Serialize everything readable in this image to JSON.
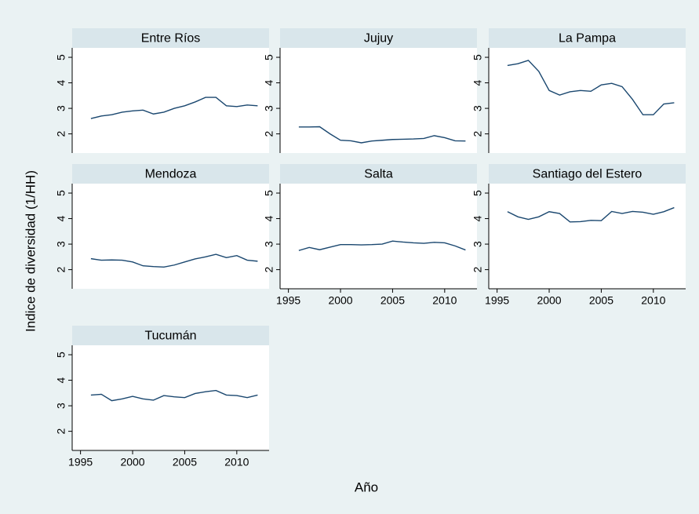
{
  "axis_titles": {
    "y": "Indice de diversidad (1/HH)",
    "x": "Año"
  },
  "chart_data": [
    {
      "type": "line",
      "title": "Entre Ríos",
      "color": "#1a476f",
      "grid": false,
      "x": [
        1996,
        1997,
        1998,
        1999,
        2000,
        2001,
        2002,
        2003,
        2004,
        2005,
        2006,
        2007,
        2008,
        2009,
        2010,
        2011,
        2012
      ],
      "values": [
        2.6,
        2.7,
        2.75,
        2.85,
        2.9,
        2.93,
        2.78,
        2.85,
        3.0,
        3.1,
        3.25,
        3.43,
        3.43,
        3.1,
        3.07,
        3.13,
        3.1
      ],
      "xlim": [
        1994.2,
        2013.1
      ],
      "ylim": [
        1.25,
        5.37
      ],
      "yticks": [
        2,
        3,
        4,
        5
      ]
    },
    {
      "type": "line",
      "title": "Jujuy",
      "color": "#1a476f",
      "grid": false,
      "x": [
        1996,
        1997,
        1998,
        1999,
        2000,
        2001,
        2002,
        2003,
        2004,
        2005,
        2006,
        2007,
        2008,
        2009,
        2010,
        2011,
        2012
      ],
      "values": [
        2.27,
        2.27,
        2.28,
        2.0,
        1.75,
        1.73,
        1.65,
        1.72,
        1.75,
        1.78,
        1.79,
        1.8,
        1.82,
        1.93,
        1.85,
        1.73,
        1.72
      ],
      "xlim": [
        1994.2,
        2013.1
      ],
      "ylim": [
        1.25,
        5.37
      ],
      "yticks": [
        2,
        3,
        4,
        5
      ]
    },
    {
      "type": "line",
      "title": "La Pampa",
      "color": "#1a476f",
      "grid": false,
      "x": [
        1996,
        1997,
        1998,
        1999,
        2000,
        2001,
        2002,
        2003,
        2004,
        2005,
        2006,
        2007,
        2008,
        2009,
        2010,
        2011,
        2012
      ],
      "values": [
        4.68,
        4.75,
        4.88,
        4.45,
        3.7,
        3.52,
        3.65,
        3.7,
        3.67,
        3.92,
        3.98,
        3.85,
        3.35,
        2.75,
        2.75,
        3.17,
        3.22
      ],
      "xlim": [
        1994.2,
        2013.1
      ],
      "ylim": [
        1.25,
        5.37
      ],
      "yticks": [
        2,
        3,
        4,
        5
      ]
    },
    {
      "type": "line",
      "title": "Mendoza",
      "color": "#1a476f",
      "grid": false,
      "x": [
        1996,
        1997,
        1998,
        1999,
        2000,
        2001,
        2002,
        2003,
        2004,
        2005,
        2006,
        2007,
        2008,
        2009,
        2010,
        2011,
        2012
      ],
      "values": [
        2.43,
        2.37,
        2.38,
        2.37,
        2.3,
        2.15,
        2.12,
        2.1,
        2.18,
        2.3,
        2.42,
        2.5,
        2.6,
        2.47,
        2.55,
        2.37,
        2.33
      ],
      "xlim": [
        1994.2,
        2013.1
      ],
      "ylim": [
        1.25,
        5.37
      ],
      "yticks": [
        2,
        3,
        4,
        5
      ]
    },
    {
      "type": "line",
      "title": "Salta",
      "color": "#1a476f",
      "grid": false,
      "x": [
        1996,
        1997,
        1998,
        1999,
        2000,
        2001,
        2002,
        2003,
        2004,
        2005,
        2006,
        2007,
        2008,
        2009,
        2010,
        2011,
        2012
      ],
      "values": [
        2.75,
        2.87,
        2.78,
        2.88,
        2.98,
        2.98,
        2.97,
        2.98,
        3.0,
        3.12,
        3.08,
        3.05,
        3.03,
        3.07,
        3.05,
        2.93,
        2.77
      ],
      "xlim": [
        1994.2,
        2013.1
      ],
      "ylim": [
        1.25,
        5.37
      ],
      "yticks": [
        2,
        3,
        4,
        5
      ],
      "xticks": [
        1995,
        2000,
        2005,
        2010
      ]
    },
    {
      "type": "line",
      "title": "Santiago del Estero",
      "color": "#1a476f",
      "grid": false,
      "x": [
        1996,
        1997,
        1998,
        1999,
        2000,
        2001,
        2002,
        2003,
        2004,
        2005,
        2006,
        2007,
        2008,
        2009,
        2010,
        2011,
        2012
      ],
      "values": [
        4.27,
        4.07,
        3.97,
        4.07,
        4.27,
        4.2,
        3.87,
        3.88,
        3.93,
        3.92,
        4.28,
        4.2,
        4.28,
        4.25,
        4.17,
        4.27,
        4.43
      ],
      "xlim": [
        1994.2,
        2013.1
      ],
      "ylim": [
        1.25,
        5.37
      ],
      "yticks": [
        2,
        3,
        4,
        5
      ],
      "xticks": [
        1995,
        2000,
        2005,
        2010
      ]
    },
    {
      "type": "line",
      "title": "Tucumán",
      "color": "#1a476f",
      "grid": false,
      "x": [
        1996,
        1997,
        1998,
        1999,
        2000,
        2001,
        2002,
        2003,
        2004,
        2005,
        2006,
        2007,
        2008,
        2009,
        2010,
        2011,
        2012
      ],
      "values": [
        3.42,
        3.45,
        3.2,
        3.27,
        3.37,
        3.27,
        3.22,
        3.4,
        3.35,
        3.32,
        3.48,
        3.55,
        3.6,
        3.42,
        3.4,
        3.32,
        3.42
      ],
      "xlim": [
        1994.2,
        2013.1
      ],
      "ylim": [
        1.25,
        5.37
      ],
      "yticks": [
        2,
        3,
        4,
        5
      ],
      "xticks": [
        1995,
        2000,
        2005,
        2010
      ]
    }
  ]
}
